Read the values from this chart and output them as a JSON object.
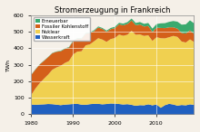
{
  "title": "Stromerzeugung in Frankreich",
  "xlabel": "",
  "ylabel": "TWh",
  "xlim": [
    1980,
    2019
  ],
  "ylim": [
    0,
    600
  ],
  "yticks": [
    0,
    100,
    200,
    300,
    400,
    500,
    600
  ],
  "xticks": [
    1980,
    1990,
    2000,
    2010
  ],
  "legend_labels": [
    "Erneuerbar",
    "Fossiler Kohlenstoff",
    "Nuklear",
    "Wasserkraft"
  ],
  "colors_order": [
    "erneuerbar",
    "fossiler",
    "nuklear",
    "wasserkraft"
  ],
  "color_erneuerbar": "#3aaa6e",
  "color_fossiler": "#d4601a",
  "color_nuklear": "#f0d050",
  "color_wasserkraft": "#2060c0",
  "bg_color": "#f5f0e8",
  "grid_color": "#ffffff",
  "years": [
    1980,
    1981,
    1982,
    1983,
    1984,
    1985,
    1986,
    1987,
    1988,
    1989,
    1990,
    1991,
    1992,
    1993,
    1994,
    1995,
    1996,
    1997,
    1998,
    1999,
    2000,
    2001,
    2002,
    2003,
    2004,
    2005,
    2006,
    2007,
    2008,
    2009,
    2010,
    2011,
    2012,
    2013,
    2014,
    2015,
    2016,
    2017,
    2018,
    2019
  ],
  "wasserkraft_data": [
    62,
    60,
    62,
    63,
    65,
    64,
    61,
    58,
    61,
    63,
    65,
    66,
    61,
    60,
    64,
    66,
    66,
    63,
    65,
    68,
    67,
    65,
    62,
    64,
    60,
    54,
    58,
    57,
    63,
    57,
    62,
    42,
    58,
    66,
    62,
    55,
    59,
    57,
    63,
    60
  ],
  "nuklear_data": [
    60,
    100,
    130,
    155,
    178,
    208,
    225,
    238,
    252,
    262,
    300,
    316,
    323,
    360,
    362,
    378,
    397,
    392,
    376,
    390,
    397,
    420,
    416,
    420,
    448,
    430,
    428,
    420,
    418,
    390,
    407,
    421,
    404,
    403,
    415,
    416,
    384,
    380,
    393,
    380
  ],
  "fossiler_data": [
    120,
    115,
    112,
    108,
    105,
    100,
    95,
    88,
    85,
    82,
    80,
    78,
    76,
    70,
    68,
    62,
    65,
    64,
    62,
    60,
    60,
    62,
    63,
    65,
    62,
    58,
    60,
    57,
    56,
    54,
    58,
    62,
    62,
    60,
    52,
    50,
    52,
    54,
    55,
    48
  ],
  "erneuerbar_data": [
    2,
    2,
    2,
    2,
    2,
    2,
    2,
    3,
    3,
    3,
    4,
    4,
    4,
    5,
    5,
    5,
    6,
    6,
    6,
    7,
    8,
    9,
    10,
    11,
    12,
    13,
    15,
    16,
    18,
    20,
    22,
    28,
    30,
    33,
    38,
    42,
    50,
    56,
    60,
    65
  ]
}
